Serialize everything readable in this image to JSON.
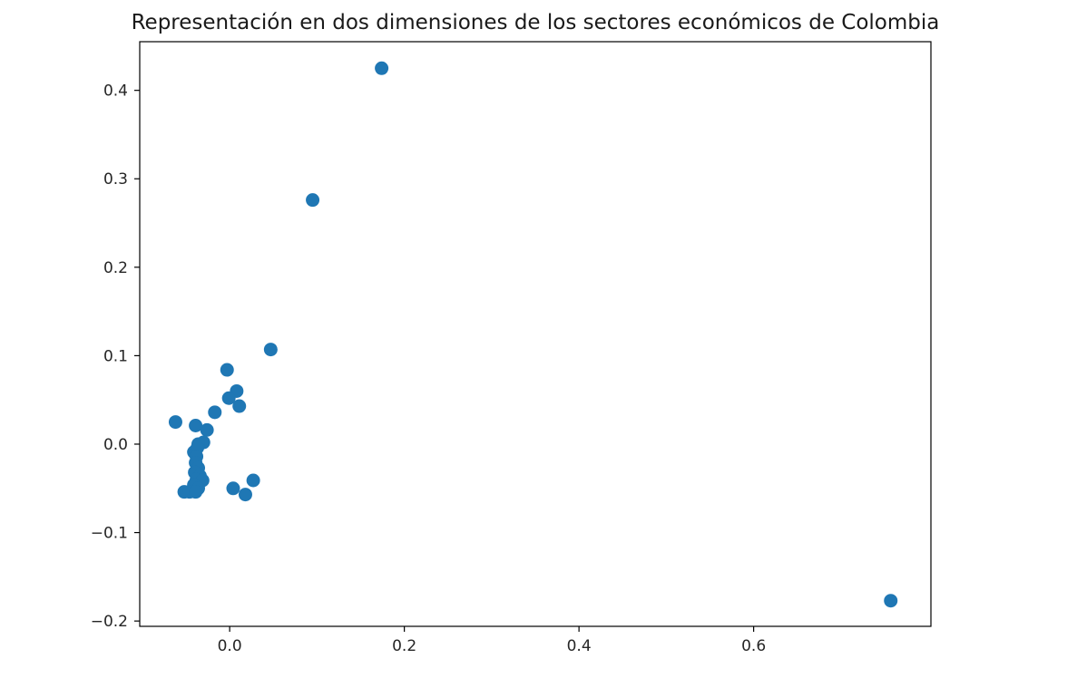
{
  "chart_data": {
    "type": "scatter",
    "title": "Representación en dos dimensiones de los sectores económicos de Colombia",
    "xlabel": "",
    "ylabel": "",
    "xlim": [
      -0.103,
      0.803
    ],
    "ylim": [
      -0.206,
      0.455
    ],
    "x_ticks": [
      0.0,
      0.2,
      0.4,
      0.6
    ],
    "x_tick_labels": [
      "0.0",
      "0.2",
      "0.4",
      "0.6"
    ],
    "y_ticks": [
      -0.2,
      -0.1,
      0.0,
      0.1,
      0.2,
      0.3,
      0.4
    ],
    "y_tick_labels": [
      "−0.2",
      "−0.1",
      "0.0",
      "0.1",
      "0.2",
      "0.3",
      "0.4"
    ],
    "grid": false,
    "marker_color": "#1f77b4",
    "points": [
      {
        "x": 0.174,
        "y": 0.425
      },
      {
        "x": 0.095,
        "y": 0.276
      },
      {
        "x": 0.047,
        "y": 0.107
      },
      {
        "x": -0.003,
        "y": 0.084
      },
      {
        "x": 0.008,
        "y": 0.06
      },
      {
        "x": 0.011,
        "y": 0.043
      },
      {
        "x": -0.001,
        "y": 0.052
      },
      {
        "x": -0.017,
        "y": 0.036
      },
      {
        "x": -0.062,
        "y": 0.025
      },
      {
        "x": -0.039,
        "y": 0.021
      },
      {
        "x": -0.026,
        "y": 0.016
      },
      {
        "x": -0.03,
        "y": 0.002
      },
      {
        "x": -0.036,
        "y": 0.0
      },
      {
        "x": -0.041,
        "y": -0.009
      },
      {
        "x": -0.037,
        "y": -0.004
      },
      {
        "x": -0.038,
        "y": -0.014
      },
      {
        "x": -0.039,
        "y": -0.021
      },
      {
        "x": -0.036,
        "y": -0.027
      },
      {
        "x": -0.04,
        "y": -0.032
      },
      {
        "x": -0.034,
        "y": -0.036
      },
      {
        "x": -0.038,
        "y": -0.04
      },
      {
        "x": -0.031,
        "y": -0.041
      },
      {
        "x": -0.041,
        "y": -0.046
      },
      {
        "x": -0.036,
        "y": -0.05
      },
      {
        "x": -0.052,
        "y": -0.054
      },
      {
        "x": -0.046,
        "y": -0.054
      },
      {
        "x": -0.039,
        "y": -0.054
      },
      {
        "x": 0.004,
        "y": -0.05
      },
      {
        "x": 0.027,
        "y": -0.041
      },
      {
        "x": 0.018,
        "y": -0.057
      },
      {
        "x": 0.757,
        "y": -0.177
      }
    ]
  }
}
